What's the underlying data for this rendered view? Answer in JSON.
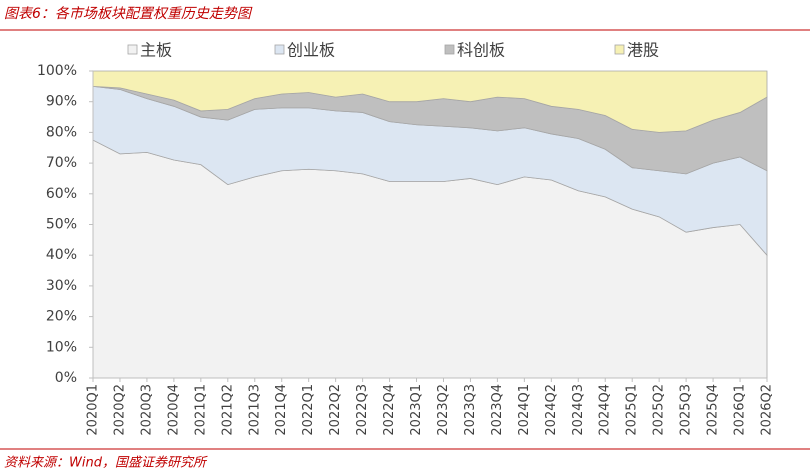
{
  "chart_data": {
    "type": "stacked-area",
    "title": "图表6：各市场板块配置权重历史走势图",
    "source": "资料来源：Wind，国盛证券研究所",
    "categories": [
      "2020Q1",
      "2020Q2",
      "2020Q3",
      "2020Q4",
      "2021Q1",
      "2021Q2",
      "2021Q3",
      "2021Q4",
      "2022Q1",
      "2022Q2",
      "2022Q3",
      "2022Q4",
      "2023Q1",
      "2023Q2",
      "2023Q3",
      "2023Q4",
      "2024Q1",
      "2024Q2",
      "2024Q3",
      "2024Q4",
      "2025Q1",
      "2025Q2",
      "2025Q3",
      "2025Q4",
      "2026Q1",
      "2026Q2"
    ],
    "series": [
      {
        "name": "主板",
        "color": "#f2f2f2",
        "values": [
          77.5,
          73,
          73.5,
          71,
          69.5,
          63,
          65.5,
          67.5,
          68,
          67.5,
          66.5,
          64,
          64,
          64,
          65,
          63,
          65.5,
          64.5,
          61,
          59,
          55,
          52.5,
          47.5,
          49,
          50,
          40
        ]
      },
      {
        "name": "创业板",
        "color": "#dce6f2",
        "values": [
          17.5,
          21,
          17.5,
          17.5,
          15.5,
          21,
          22,
          20.5,
          20,
          19.5,
          20,
          19.5,
          18.5,
          18,
          16.5,
          17.5,
          16,
          15,
          17,
          15.5,
          13.5,
          15,
          19,
          21,
          22,
          27.5
        ]
      },
      {
        "name": "科创板",
        "color": "#bfbfbf",
        "values": [
          0,
          0.5,
          1.5,
          2,
          2,
          3.5,
          3.5,
          4.5,
          5,
          4.5,
          6,
          6.5,
          7.5,
          9,
          8.5,
          11,
          9.5,
          9,
          9.5,
          11,
          12.5,
          12.5,
          14,
          14,
          14.5,
          24
        ]
      },
      {
        "name": "港股",
        "color": "#f6f1b4",
        "values": [
          5,
          5.5,
          7.5,
          9.5,
          13,
          12.5,
          9,
          7.5,
          7,
          8.5,
          7.5,
          10,
          10,
          9,
          10,
          8.5,
          9,
          11.5,
          12.5,
          14.5,
          19,
          20,
          19.5,
          16,
          13.5,
          8.5
        ]
      }
    ],
    "ylim": [
      0,
      100
    ],
    "yticks": [
      {
        "value": 0,
        "label": "0%"
      },
      {
        "value": 10,
        "label": "10%"
      },
      {
        "value": 20,
        "label": "20%"
      },
      {
        "value": 30,
        "label": "30%"
      },
      {
        "value": 40,
        "label": "40%"
      },
      {
        "value": 50,
        "label": "50%"
      },
      {
        "value": 60,
        "label": "60%"
      },
      {
        "value": 70,
        "label": "70%"
      },
      {
        "value": 80,
        "label": "80%"
      },
      {
        "value": 90,
        "label": "90%"
      },
      {
        "value": 100,
        "label": "100%"
      }
    ],
    "legend": "top"
  }
}
